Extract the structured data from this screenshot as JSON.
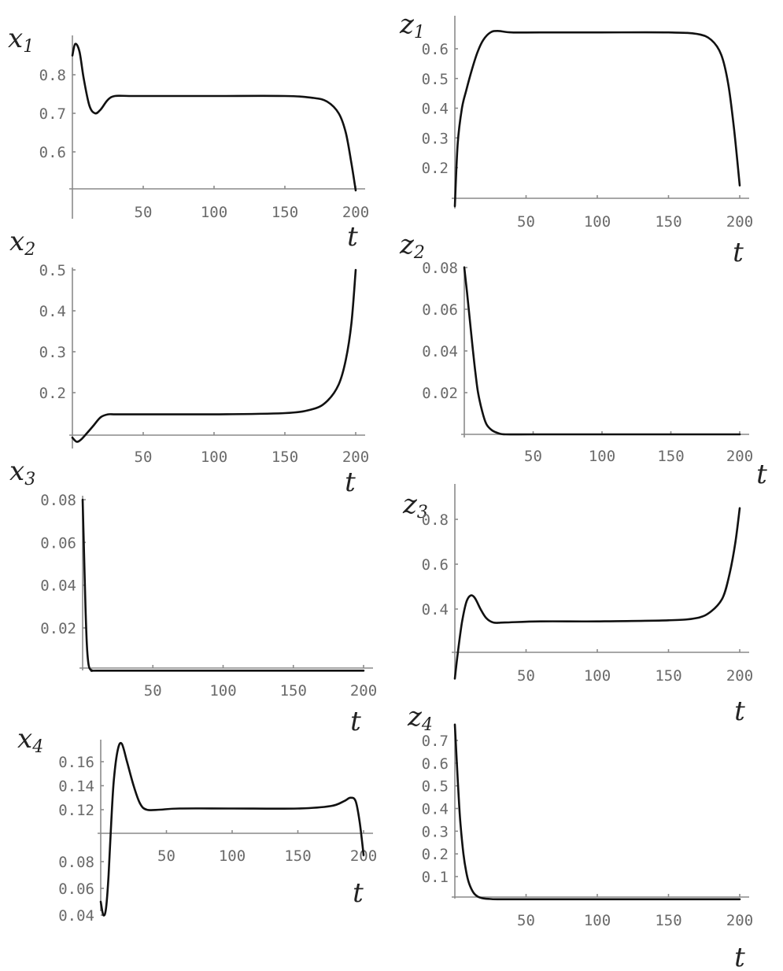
{
  "chart_data": [
    {
      "type": "line",
      "title": "x1",
      "xlabel": "t",
      "xlim": [
        0,
        200
      ],
      "ylim": [
        0.5,
        0.9
      ],
      "xticks": [
        50,
        100,
        150,
        200
      ],
      "yticks": [
        0.6,
        0.7,
        0.8
      ],
      "xtick_labels": [
        "50",
        "100",
        "150",
        "200"
      ],
      "ytick_labels": [
        "0.6",
        "0.7",
        "0.8"
      ],
      "x": [
        0,
        2,
        5,
        8,
        12,
        16,
        20,
        25,
        30,
        40,
        60,
        100,
        150,
        170,
        180,
        188,
        193,
        197,
        200
      ],
      "y": [
        0.85,
        0.88,
        0.86,
        0.79,
        0.72,
        0.7,
        0.71,
        0.735,
        0.745,
        0.745,
        0.745,
        0.745,
        0.745,
        0.74,
        0.73,
        0.7,
        0.65,
        0.57,
        0.5
      ]
    },
    {
      "type": "line",
      "title": "z1",
      "xlabel": "t",
      "xlim": [
        0,
        200
      ],
      "ylim": [
        0.1,
        0.65
      ],
      "xticks": [
        50,
        100,
        150,
        200
      ],
      "yticks": [
        0.2,
        0.3,
        0.4,
        0.5,
        0.6
      ],
      "xtick_labels": [
        "50",
        "100",
        "150",
        "200"
      ],
      "ytick_labels": [
        "0.2",
        "0.3",
        "0.4",
        "0.5",
        "0.6"
      ],
      "x": [
        0,
        2,
        5,
        8,
        12,
        16,
        20,
        25,
        30,
        40,
        60,
        100,
        150,
        170,
        180,
        187,
        192,
        196,
        200
      ],
      "y": [
        0.07,
        0.28,
        0.4,
        0.46,
        0.53,
        0.59,
        0.63,
        0.655,
        0.66,
        0.655,
        0.655,
        0.655,
        0.655,
        0.65,
        0.63,
        0.58,
        0.48,
        0.33,
        0.14
      ]
    },
    {
      "type": "line",
      "title": "x2",
      "xlabel": "t",
      "xlim": [
        0,
        200
      ],
      "ylim": [
        0.1,
        0.5
      ],
      "xticks": [
        50,
        100,
        150,
        200
      ],
      "yticks": [
        0.2,
        0.3,
        0.4,
        0.5
      ],
      "xtick_labels": [
        "50",
        "100",
        "150",
        "200"
      ],
      "ytick_labels": [
        "0.2",
        "0.3",
        "0.4",
        "0.5"
      ],
      "x": [
        0,
        3,
        6,
        10,
        15,
        20,
        25,
        30,
        40,
        60,
        100,
        150,
        170,
        180,
        188,
        193,
        197,
        200
      ],
      "y": [
        0.09,
        0.08,
        0.085,
        0.1,
        0.12,
        0.14,
        0.147,
        0.147,
        0.147,
        0.147,
        0.147,
        0.15,
        0.16,
        0.18,
        0.22,
        0.28,
        0.37,
        0.5
      ]
    },
    {
      "type": "line",
      "title": "z2",
      "xlabel": "t",
      "xlim": [
        0,
        200
      ],
      "ylim": [
        0,
        0.08
      ],
      "xticks": [
        50,
        100,
        150,
        200
      ],
      "yticks": [
        0.02,
        0.04,
        0.06,
        0.08
      ],
      "xtick_labels": [
        "50",
        "100",
        "150",
        "200"
      ],
      "ytick_labels": [
        "0.02",
        "0.04",
        "0.06",
        "0.08"
      ],
      "x": [
        0,
        2,
        4,
        6,
        8,
        10,
        13,
        16,
        20,
        25,
        30,
        50,
        100,
        150,
        200
      ],
      "y": [
        0.08,
        0.068,
        0.055,
        0.042,
        0.03,
        0.02,
        0.011,
        0.005,
        0.002,
        0.0005,
        0,
        0,
        0,
        0,
        0
      ]
    },
    {
      "type": "line",
      "title": "x3",
      "xlabel": "t",
      "xlim": [
        0,
        200
      ],
      "ylim": [
        0,
        0.08
      ],
      "xticks": [
        50,
        100,
        150,
        200
      ],
      "yticks": [
        0.02,
        0.04,
        0.06,
        0.08
      ],
      "xtick_labels": [
        "50",
        "100",
        "150",
        "200"
      ],
      "ytick_labels": [
        "0.02",
        "0.04",
        "0.06",
        "0.08"
      ],
      "x": [
        0,
        1,
        2,
        3,
        4,
        5,
        7,
        10,
        50,
        100,
        150,
        200
      ],
      "y": [
        0.08,
        0.055,
        0.03,
        0.012,
        0.004,
        0.001,
        0,
        0,
        0,
        0,
        0,
        0
      ]
    },
    {
      "type": "line",
      "title": "z3",
      "xlabel": "t",
      "xlim": [
        0,
        200
      ],
      "ylim": [
        0.2,
        0.85
      ],
      "xticks": [
        50,
        100,
        150,
        200
      ],
      "yticks": [
        0.4,
        0.6,
        0.8
      ],
      "xtick_labels": [
        "50",
        "100",
        "150",
        "200"
      ],
      "ytick_labels": [
        "0.4",
        "0.6",
        "0.8"
      ],
      "x": [
        0,
        2,
        5,
        8,
        11,
        14,
        18,
        22,
        27,
        35,
        60,
        100,
        150,
        170,
        180,
        188,
        193,
        197,
        200
      ],
      "y": [
        0.09,
        0.2,
        0.34,
        0.43,
        0.46,
        0.45,
        0.4,
        0.36,
        0.34,
        0.34,
        0.345,
        0.345,
        0.35,
        0.36,
        0.39,
        0.45,
        0.56,
        0.7,
        0.85
      ]
    },
    {
      "type": "line",
      "title": "x4",
      "xlabel": "t",
      "xlim": [
        0,
        200
      ],
      "ylim": [
        0.04,
        0.18
      ],
      "xticks": [
        50,
        100,
        150,
        200
      ],
      "yticks": [
        0.04,
        0.06,
        0.08,
        0.12,
        0.14,
        0.16
      ],
      "xtick_labels": [
        "50",
        "100",
        "150",
        "200"
      ],
      "ytick_labels": [
        "0.04",
        "0.06",
        "0.08",
        "0.12",
        "0.14",
        "0.16"
      ],
      "x": [
        0,
        2,
        4,
        6,
        8,
        10,
        13,
        16,
        20,
        25,
        30,
        35,
        45,
        60,
        100,
        150,
        175,
        185,
        190,
        194,
        197,
        200
      ],
      "y": [
        0.05,
        0.04,
        0.045,
        0.07,
        0.11,
        0.145,
        0.17,
        0.175,
        0.16,
        0.14,
        0.125,
        0.12,
        0.12,
        0.121,
        0.121,
        0.121,
        0.123,
        0.127,
        0.13,
        0.127,
        0.11,
        0.085
      ]
    },
    {
      "type": "line",
      "title": "z4",
      "xlabel": "t",
      "xlim": [
        0,
        200
      ],
      "ylim": [
        0,
        0.75
      ],
      "xticks": [
        50,
        100,
        150,
        200
      ],
      "yticks": [
        0.1,
        0.2,
        0.3,
        0.4,
        0.5,
        0.6,
        0.7
      ],
      "xtick_labels": [
        "50",
        "100",
        "150",
        "200"
      ],
      "ytick_labels": [
        "0.1",
        "0.2",
        "0.3",
        "0.4",
        "0.5",
        "0.6",
        "0.7"
      ],
      "x": [
        0,
        1,
        2,
        3,
        4,
        6,
        8,
        10,
        13,
        16,
        20,
        25,
        30,
        50,
        100,
        150,
        200
      ],
      "y": [
        0.77,
        0.65,
        0.53,
        0.42,
        0.33,
        0.2,
        0.12,
        0.07,
        0.03,
        0.012,
        0.004,
        0.001,
        0,
        0,
        0,
        0,
        0
      ]
    }
  ]
}
